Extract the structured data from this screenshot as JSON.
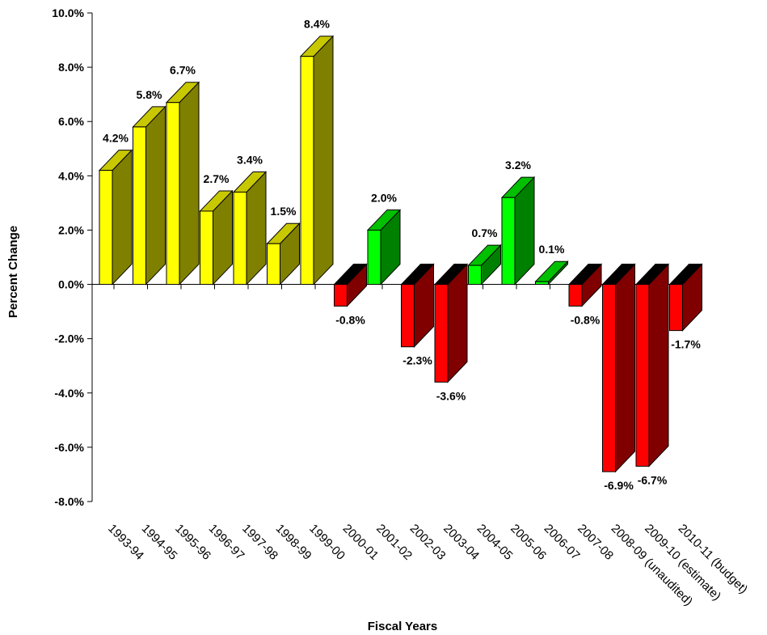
{
  "chart_data": {
    "type": "bar",
    "title": "",
    "xlabel": "Fiscal Years",
    "ylabel": "Percent Change",
    "ylim": [
      -8,
      10
    ],
    "yticks": [
      "10.0%",
      "8.0%",
      "6.0%",
      "4.0%",
      "2.0%",
      "0.0%",
      "-2.0%",
      "-4.0%",
      "-6.0%",
      "-8.0%"
    ],
    "grid": false,
    "categories": [
      "1993-94",
      "1994-95",
      "1995-96",
      "1996-97",
      "1997-98",
      "1998-99",
      "1999-00",
      "2000-01",
      "2001-02",
      "2002-03",
      "2003-04",
      "2004-05",
      "2005-06",
      "2006-07",
      "2007-08",
      "2008-09 (unaudited)",
      "2009-10 (estimate)",
      "2010-11 (budget)"
    ],
    "values": [
      4.2,
      5.8,
      6.7,
      2.7,
      3.4,
      1.5,
      8.4,
      -0.8,
      2.0,
      -2.3,
      -3.6,
      0.7,
      3.2,
      0.1,
      -0.8,
      -6.9,
      -6.7,
      -1.7
    ],
    "data_labels": [
      "4.2%",
      "5.8%",
      "6.7%",
      "2.7%",
      "3.4%",
      "1.5%",
      "8.4%",
      "-0.8%",
      "2.0%",
      "-2.3%",
      "-3.6%",
      "0.7%",
      "3.2%",
      "0.1%",
      "-0.8%",
      "-6.9%",
      "-6.7%",
      "-1.7%"
    ],
    "bar_colors": [
      "yellow",
      "yellow",
      "yellow",
      "yellow",
      "yellow",
      "yellow",
      "yellow",
      "red",
      "green",
      "red",
      "red",
      "green",
      "green",
      "green",
      "red",
      "red",
      "red",
      "red"
    ],
    "palette": {
      "yellow": {
        "front": "#ffff00",
        "side": "#808000",
        "top": "#c8c800"
      },
      "green": {
        "front": "#00ff00",
        "side": "#008000",
        "top": "#00c000"
      },
      "red": {
        "front": "#ff0000",
        "side": "#800000",
        "top": "#000000"
      }
    }
  }
}
